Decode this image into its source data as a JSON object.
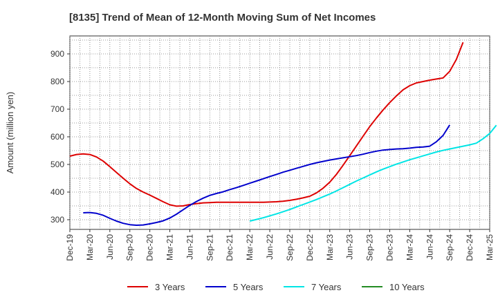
{
  "chart_data": {
    "type": "line",
    "title": "[8135]  Trend of Mean of 12-Month Moving Sum of Net Incomes",
    "ylabel": "Amount (million yen)",
    "xlabel": "",
    "ylim": [
      265,
      965
    ],
    "yticks": [
      300,
      400,
      500,
      600,
      700,
      800,
      900
    ],
    "xticks": [
      "Dec-19",
      "Mar-20",
      "Jun-20",
      "Sep-20",
      "Dec-20",
      "Mar-21",
      "Jun-21",
      "Sep-21",
      "Dec-21",
      "Mar-22",
      "Jun-22",
      "Sep-22",
      "Dec-22",
      "Mar-23",
      "Jun-23",
      "Sep-23",
      "Dec-23",
      "Mar-24",
      "Jun-24",
      "Sep-24",
      "Dec-24",
      "Mar-25"
    ],
    "grid": true,
    "legend_position": "bottom",
    "series": [
      {
        "name": "3 Years",
        "color": "#dd0000",
        "start_month": 0,
        "values": [
          530,
          536,
          538,
          536,
          527,
          512,
          492,
          471,
          450,
          430,
          413,
          400,
          389,
          377,
          365,
          354,
          349,
          350,
          355,
          358,
          361,
          362,
          363,
          363,
          363,
          363,
          363,
          363,
          363,
          363,
          364,
          365,
          367,
          370,
          374,
          379,
          385,
          397,
          414,
          436,
          464,
          497,
          532,
          567,
          602,
          637,
          668,
          697,
          724,
          748,
          770,
          785,
          795,
          800,
          805,
          809,
          813,
          837,
          880,
          942
        ]
      },
      {
        "name": "5 Years",
        "color": "#0000cc",
        "start_month": 2,
        "values": [
          325,
          326,
          323,
          316,
          305,
          295,
          287,
          282,
          280,
          281,
          285,
          290,
          296,
          306,
          320,
          336,
          352,
          366,
          378,
          388,
          395,
          401,
          409,
          416,
          424,
          432,
          440,
          448,
          456,
          464,
          472,
          479,
          486,
          493,
          500,
          506,
          511,
          516,
          520,
          524,
          528,
          532,
          537,
          543,
          548,
          552,
          554,
          556,
          557,
          559,
          562,
          563,
          566,
          582,
          605,
          643
        ]
      },
      {
        "name": "7 Years",
        "color": "#00e5e5",
        "start_month": 27,
        "values": [
          295,
          301,
          307,
          314,
          321,
          329,
          337,
          346,
          355,
          364,
          373,
          383,
          393,
          404,
          416,
          428,
          440,
          451,
          462,
          473,
          483,
          492,
          501,
          509,
          517,
          524,
          531,
          538,
          545,
          551,
          556,
          561,
          566,
          571,
          577,
          593,
          612,
          642
        ]
      },
      {
        "name": "10 Years",
        "color": "#228b22",
        "start_month": 0,
        "values": []
      }
    ]
  }
}
